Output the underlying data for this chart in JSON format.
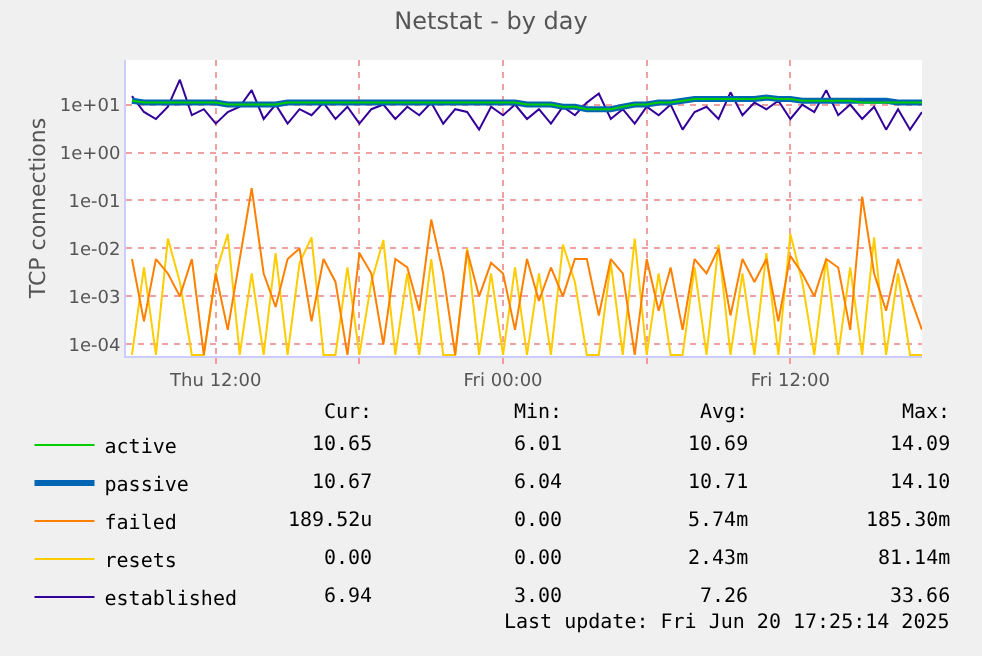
{
  "chart_data": {
    "type": "line",
    "title": "Netstat - by day",
    "ylabel": "TCP connections",
    "x": [
      "2025-06-19T08:30",
      "2025-06-19T09:00",
      "2025-06-19T09:30",
      "2025-06-19T10:00",
      "2025-06-19T10:30",
      "2025-06-19T11:00",
      "2025-06-19T11:30",
      "2025-06-19T12:00",
      "2025-06-19T12:30",
      "2025-06-19T13:00",
      "2025-06-19T13:30",
      "2025-06-19T14:00",
      "2025-06-19T14:30",
      "2025-06-19T15:00",
      "2025-06-19T15:30",
      "2025-06-19T16:00",
      "2025-06-19T16:30",
      "2025-06-19T17:00",
      "2025-06-19T17:30",
      "2025-06-19T18:00",
      "2025-06-19T18:30",
      "2025-06-19T19:00",
      "2025-06-19T19:30",
      "2025-06-19T20:00",
      "2025-06-19T20:30",
      "2025-06-19T21:00",
      "2025-06-19T21:30",
      "2025-06-19T22:00",
      "2025-06-19T22:30",
      "2025-06-19T23:00",
      "2025-06-19T23:30",
      "2025-06-20T00:00",
      "2025-06-20T00:30",
      "2025-06-20T01:00",
      "2025-06-20T01:30",
      "2025-06-20T02:00",
      "2025-06-20T02:30",
      "2025-06-20T03:00",
      "2025-06-20T03:30",
      "2025-06-20T04:00",
      "2025-06-20T04:30",
      "2025-06-20T05:00",
      "2025-06-20T05:30",
      "2025-06-20T06:00",
      "2025-06-20T06:30",
      "2025-06-20T07:00",
      "2025-06-20T07:30",
      "2025-06-20T08:00",
      "2025-06-20T08:30",
      "2025-06-20T09:00",
      "2025-06-20T09:30",
      "2025-06-20T10:00",
      "2025-06-20T10:30",
      "2025-06-20T11:00",
      "2025-06-20T11:30",
      "2025-06-20T12:00",
      "2025-06-20T12:30",
      "2025-06-20T13:00",
      "2025-06-20T13:30",
      "2025-06-20T14:00",
      "2025-06-20T14:30",
      "2025-06-20T15:00",
      "2025-06-20T15:30",
      "2025-06-20T16:00",
      "2025-06-20T16:30",
      "2025-06-20T17:00",
      "2025-06-20T17:30"
    ],
    "series": [
      {
        "name": "active",
        "color": "#00cc00",
        "values": [
          12,
          11,
          11,
          11,
          11,
          11,
          11,
          11,
          10,
          10,
          10,
          10,
          10,
          11,
          11,
          11,
          11,
          11,
          11,
          11,
          11,
          11,
          11,
          11,
          11,
          11,
          11,
          11,
          11,
          11,
          11,
          11,
          11,
          10,
          10,
          10,
          9,
          9,
          8,
          8,
          8,
          9,
          10,
          10,
          11,
          11,
          12,
          13,
          13,
          13,
          13,
          13,
          13,
          14,
          13,
          13,
          12,
          12,
          12,
          12,
          12,
          11,
          11,
          11,
          11,
          11,
          11
        ]
      },
      {
        "name": "passive",
        "color": "#0066b3",
        "values": [
          12,
          11,
          11,
          11,
          11,
          11,
          11,
          11,
          10,
          10,
          10,
          10,
          10,
          11,
          11,
          11,
          11,
          11,
          11,
          11,
          11,
          11,
          11,
          11,
          11,
          11,
          11,
          11,
          11,
          11,
          11,
          11,
          11,
          10,
          10,
          10,
          9,
          9,
          8,
          8,
          8,
          9,
          10,
          10,
          11,
          11,
          12,
          13,
          13,
          13,
          13,
          13,
          13,
          14,
          13,
          13,
          12,
          12,
          12,
          12,
          12,
          12,
          12,
          12,
          11,
          11,
          11
        ]
      },
      {
        "name": "failed",
        "color": "#ff8000",
        "values": [
          0.006,
          0.0003,
          0.006,
          0.003,
          0.001,
          0.006,
          6e-05,
          0.003,
          0.0002,
          0.006,
          0.18,
          0.003,
          0.0006,
          0.006,
          0.01,
          0.0003,
          0.006,
          0.002,
          6e-05,
          0.008,
          0.003,
          0.0001,
          0.006,
          0.004,
          0.0005,
          0.04,
          0.003,
          6e-05,
          0.009,
          0.001,
          0.005,
          0.003,
          0.0002,
          0.006,
          0.0008,
          0.004,
          0.001,
          0.006,
          0.006,
          0.0004,
          0.006,
          0.003,
          6e-05,
          0.006,
          0.0005,
          0.004,
          0.0002,
          0.006,
          0.003,
          0.01,
          0.0004,
          0.006,
          0.002,
          0.006,
          0.0003,
          0.007,
          0.003,
          0.001,
          0.006,
          0.004,
          0.0002,
          0.12,
          0.003,
          0.0005,
          0.006,
          0.001,
          0.0002
        ]
      },
      {
        "name": "resets",
        "color": "#ffcc00",
        "values": [
          6e-05,
          0.004,
          6e-05,
          0.016,
          0.002,
          6e-05,
          6e-05,
          0.003,
          0.02,
          6e-05,
          0.003,
          6e-05,
          0.008,
          6e-05,
          0.005,
          0.017,
          6e-05,
          6e-05,
          0.004,
          6e-05,
          0.002,
          0.015,
          6e-05,
          0.003,
          6e-05,
          0.006,
          6e-05,
          6e-05,
          0.01,
          6e-05,
          0.003,
          6e-05,
          0.004,
          6e-05,
          0.003,
          6e-05,
          0.012,
          0.002,
          6e-05,
          6e-05,
          0.005,
          6e-05,
          0.016,
          6e-05,
          0.003,
          6e-05,
          6e-05,
          0.004,
          6e-05,
          0.012,
          6e-05,
          0.003,
          6e-05,
          0.008,
          6e-05,
          0.02,
          0.002,
          6e-05,
          0.006,
          6e-05,
          0.004,
          6e-05,
          0.017,
          6e-05,
          0.003,
          6e-05,
          6e-05
        ]
      },
      {
        "name": "established",
        "color": "#330099",
        "values": [
          15,
          7,
          5,
          9,
          33,
          6,
          8,
          4,
          7,
          9,
          20,
          5,
          10,
          4,
          8,
          6,
          11,
          5,
          9,
          4,
          8,
          10,
          5,
          9,
          6,
          11,
          4,
          8,
          7,
          3,
          9,
          6,
          10,
          5,
          8,
          4,
          9,
          6,
          11,
          17,
          5,
          8,
          4,
          9,
          6,
          10,
          3,
          7,
          9,
          5,
          18,
          6,
          11,
          8,
          12,
          5,
          10,
          7,
          20,
          6,
          10,
          5,
          9,
          3,
          8,
          3,
          7
        ]
      }
    ],
    "xlim": [
      "2025-06-19T08:15",
      "2025-06-20T17:30"
    ],
    "xticks": [
      {
        "value": "2025-06-19T12:00",
        "label": "Thu 12:00"
      },
      {
        "value": "2025-06-19T18:00",
        "label": null
      },
      {
        "value": "2025-06-20T00:00",
        "label": "Fri 00:00"
      },
      {
        "value": "2025-06-20T06:00",
        "label": null
      },
      {
        "value": "2025-06-20T12:00",
        "label": "Fri 12:00"
      }
    ],
    "ylim": [
      5.7e-05,
      85
    ],
    "yticks": [
      {
        "value": 0.0001,
        "label": "1e-04"
      },
      {
        "value": 0.001,
        "label": "1e-03"
      },
      {
        "value": 0.01,
        "label": "1e-02"
      },
      {
        "value": 0.1,
        "label": "1e-01"
      },
      {
        "value": 1,
        "label": "1e+00"
      },
      {
        "value": 10,
        "label": "1e+01"
      }
    ],
    "log": "y",
    "grid": true,
    "legend": "bottom left",
    "marker": "none",
    "line_style": "solid",
    "annotations": [
      "Cur:",
      "Min:",
      "Avg:",
      "Max:",
      "10.65",
      "6.01",
      "10.69",
      "14.09",
      "10.67",
      "6.04",
      "10.71",
      "14.10",
      "189.52u",
      "0.00",
      "5.74m",
      "185.30m",
      "0.00",
      "0.00",
      "2.43m",
      "81.14m",
      "6.94",
      "3.00",
      "7.26",
      "33.66",
      "Last update: Fri Jun 20 17:25:14 2025"
    ]
  }
}
